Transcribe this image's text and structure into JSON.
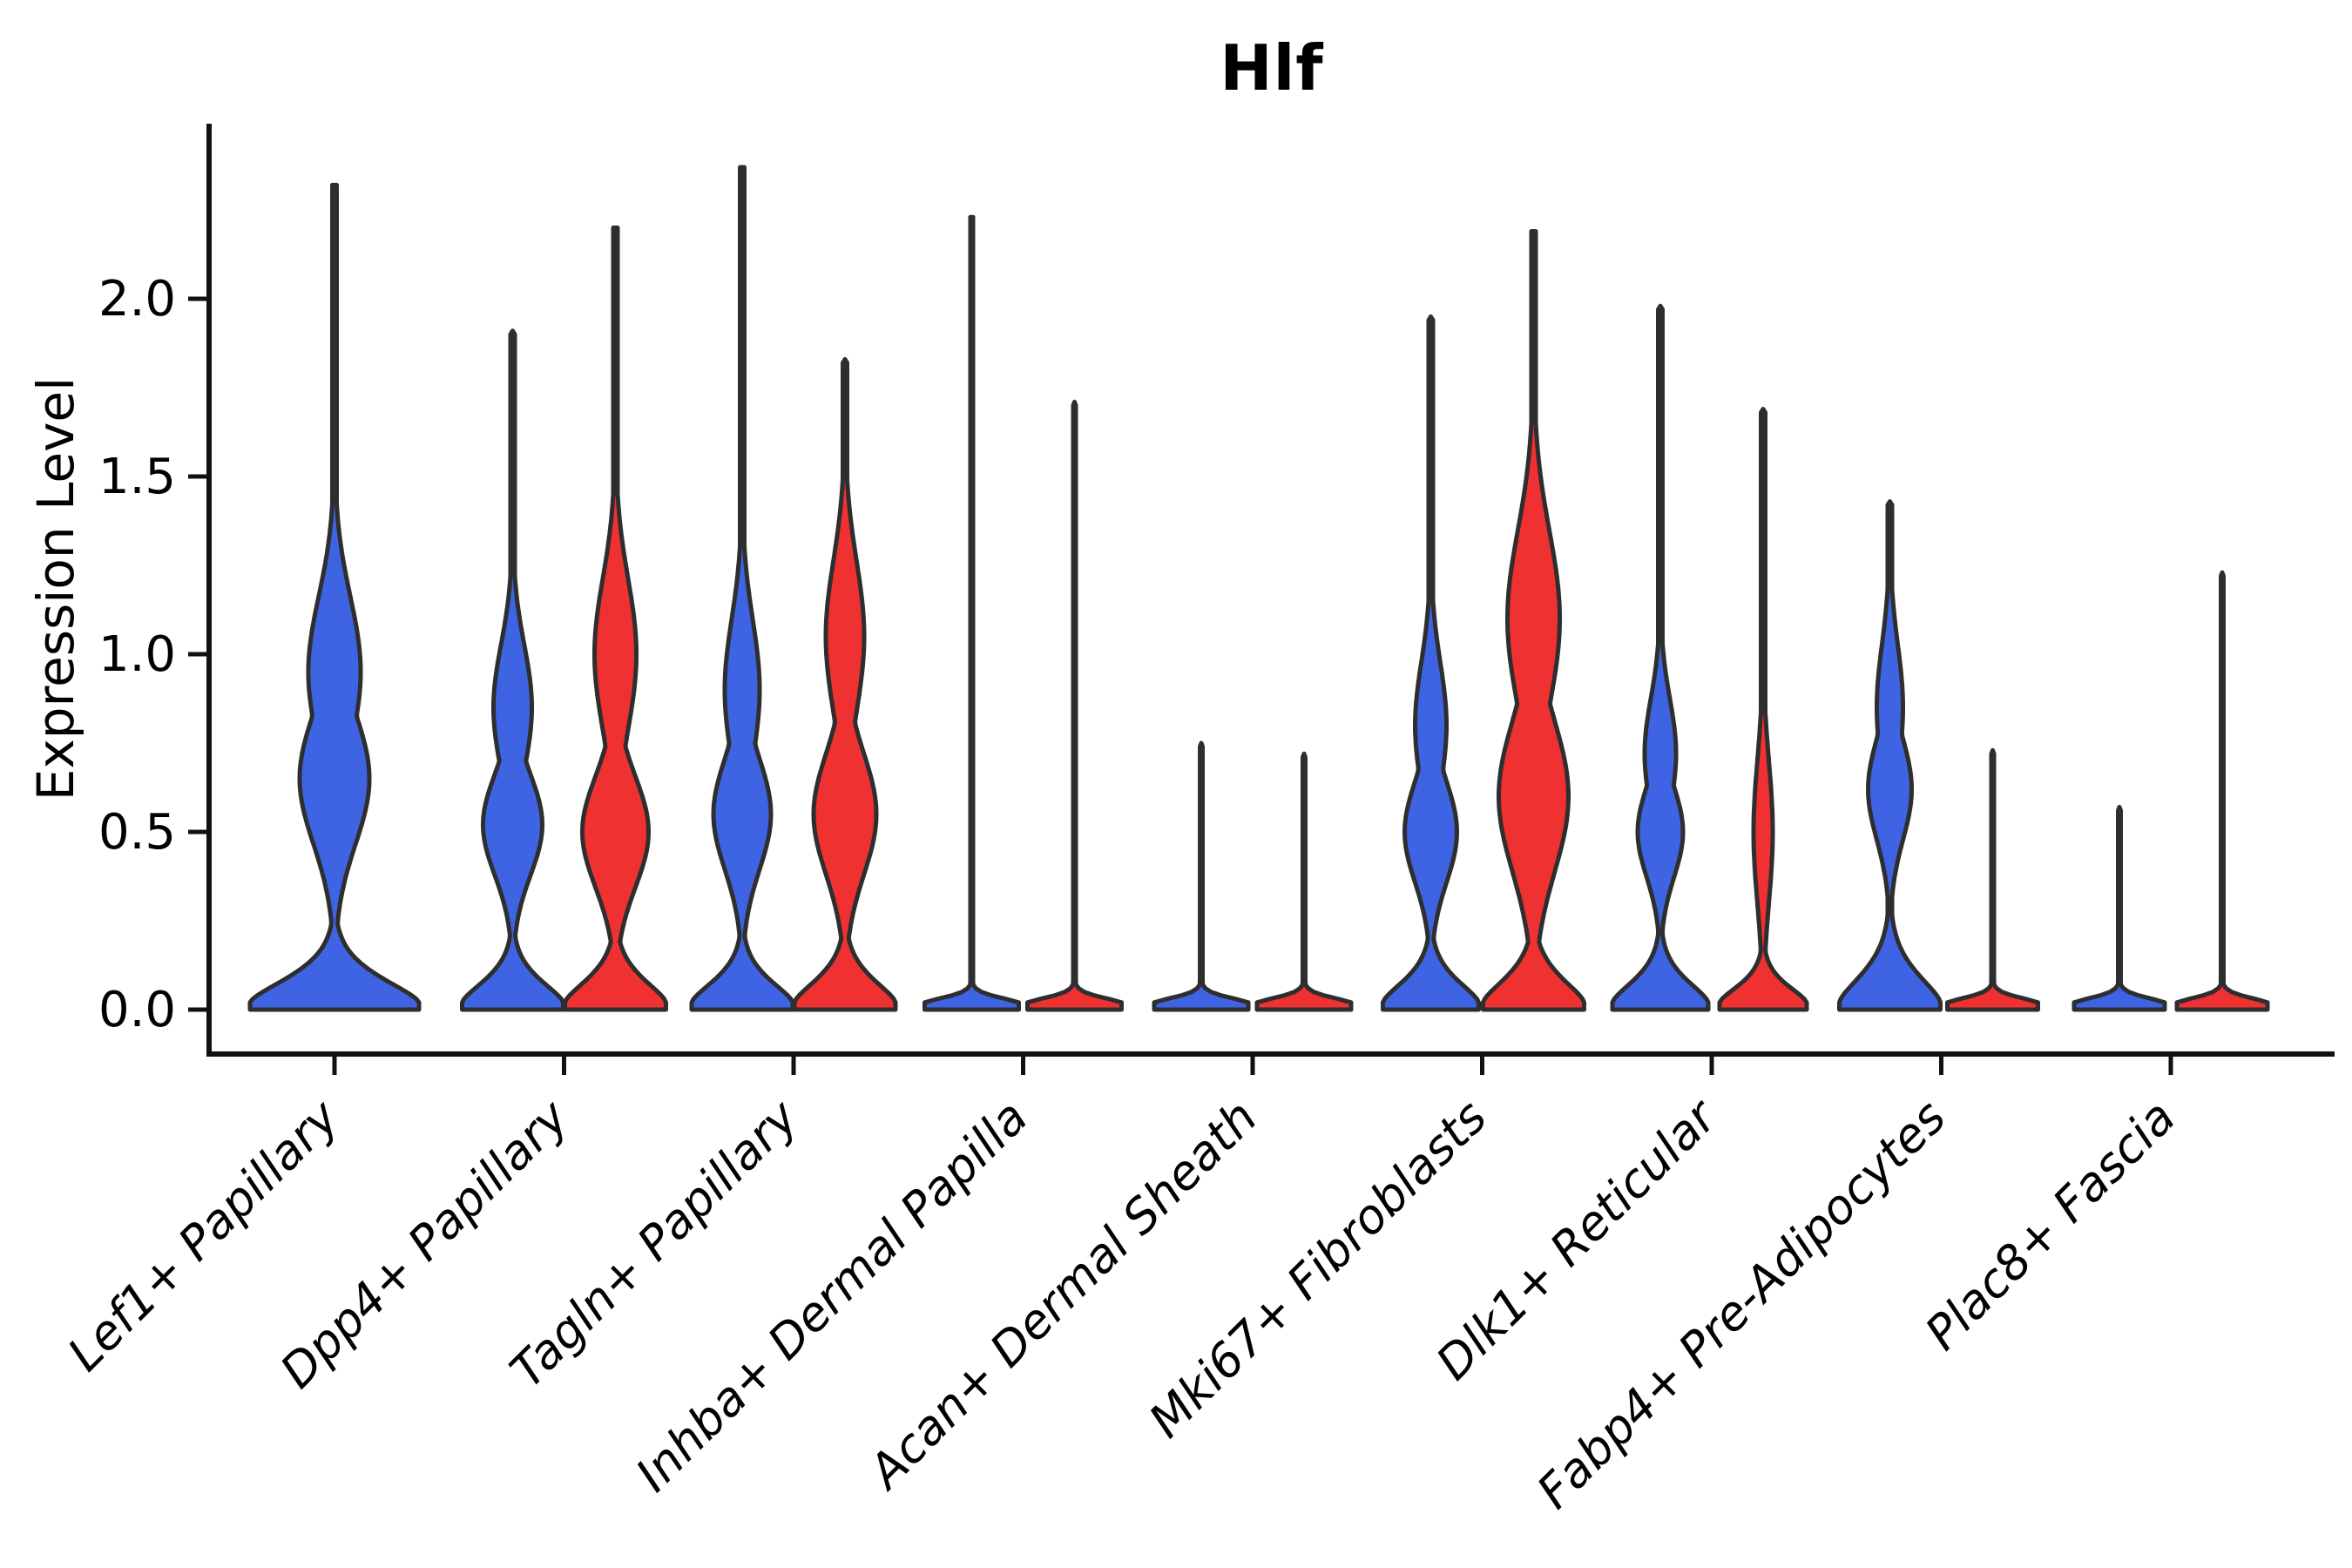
{
  "chart_data": {
    "type": "violin",
    "title": "Hlf",
    "ylabel": "Expression Level",
    "xlabel": "",
    "grid": false,
    "legend": null,
    "yticks": [
      0.0,
      0.5,
      1.0,
      1.5,
      2.0
    ],
    "ytick_labels": [
      "0.0",
      "0.5",
      "1.0",
      "1.5",
      "2.0"
    ],
    "ylim": [
      -0.07,
      2.49
    ],
    "colors": {
      "left": "#3E64E3",
      "right": "#F03131",
      "outline": "#2E2E2E",
      "axis": "#111111"
    },
    "categories": [
      {
        "label": "Lef1+ Papillary",
        "violins": [
          {
            "side": "full",
            "color": "left",
            "max": 2.32,
            "mode": 0.68,
            "base_w": 97,
            "base_s": 0.1,
            "bumps": [
              [
                0.65,
                40,
                0.26
              ],
              [
                0.95,
                30,
                0.3
              ]
            ],
            "spike_w": 2.5
          }
        ]
      },
      {
        "label": "Dpp4+ Papillary",
        "violins": [
          {
            "side": "left",
            "color": "left",
            "max": 1.91,
            "mode": 0.55,
            "base_w": 58,
            "base_s": 0.09,
            "bumps": [
              [
                0.52,
                34,
                0.2
              ],
              [
                0.85,
                22,
                0.25
              ]
            ],
            "spike_w": 2.5
          },
          {
            "side": "right",
            "color": "right",
            "max": 2.2,
            "mode": 0.55,
            "base_w": 58,
            "base_s": 0.095,
            "bumps": [
              [
                0.5,
                38,
                0.22
              ],
              [
                1.0,
                24,
                0.3
              ]
            ],
            "spike_w": 2.5
          }
        ]
      },
      {
        "label": "Tagln+ Papillary",
        "violins": [
          {
            "side": "left",
            "color": "left",
            "max": 2.37,
            "mode": 0.58,
            "base_w": 58,
            "base_s": 0.09,
            "bumps": [
              [
                0.55,
                33,
                0.22
              ],
              [
                0.9,
                20,
                0.28
              ]
            ],
            "spike_w": 2.5
          },
          {
            "side": "right",
            "color": "right",
            "max": 1.83,
            "mode": 0.6,
            "base_w": 58,
            "base_s": 0.095,
            "bumps": [
              [
                0.55,
                36,
                0.24
              ],
              [
                1.05,
                22,
                0.3
              ]
            ],
            "spike_w": 2.5
          }
        ]
      },
      {
        "label": "Inhba+ Dermal Papilla",
        "violins": [
          {
            "side": "left",
            "color": "left",
            "max": 2.23,
            "mode": 0.0,
            "base_w": 54,
            "base_s": 0.022,
            "bumps": [],
            "spike_w": 1.5
          },
          {
            "side": "right",
            "color": "right",
            "max": 1.71,
            "mode": 0.0,
            "base_w": 54,
            "base_s": 0.022,
            "bumps": [],
            "spike_w": 1.5
          }
        ]
      },
      {
        "label": "Acan+ Dermal Sheath",
        "violins": [
          {
            "side": "left",
            "color": "left",
            "max": 0.75,
            "mode": 0.0,
            "base_w": 54,
            "base_s": 0.022,
            "bumps": [],
            "spike_w": 1.5
          },
          {
            "side": "right",
            "color": "right",
            "max": 0.72,
            "mode": 0.0,
            "base_w": 54,
            "base_s": 0.022,
            "bumps": [],
            "spike_w": 1.5
          }
        ]
      },
      {
        "label": "Mki67+ Fibroblasts",
        "violins": [
          {
            "side": "left",
            "color": "left",
            "max": 1.95,
            "mode": 0.5,
            "base_w": 55,
            "base_s": 0.09,
            "bumps": [
              [
                0.5,
                30,
                0.2
              ],
              [
                0.8,
                18,
                0.25
              ]
            ],
            "spike_w": 2.5
          },
          {
            "side": "right",
            "color": "right",
            "max": 2.19,
            "mode": 0.7,
            "base_w": 58,
            "base_s": 0.1,
            "bumps": [
              [
                0.6,
                40,
                0.3
              ],
              [
                1.1,
                30,
                0.35
              ]
            ],
            "spike_w": 2.5
          }
        ]
      },
      {
        "label": "Dlk1+ Reticular",
        "violins": [
          {
            "side": "left",
            "color": "left",
            "max": 1.98,
            "mode": 0.5,
            "base_w": 55,
            "base_s": 0.09,
            "bumps": [
              [
                0.5,
                26,
                0.18
              ],
              [
                0.72,
                18,
                0.22
              ]
            ],
            "spike_w": 2.5
          },
          {
            "side": "right",
            "color": "right",
            "max": 1.69,
            "mode": 0.55,
            "base_w": 50,
            "base_s": 0.07,
            "bumps": [
              [
                0.5,
                11,
                0.28
              ]
            ],
            "spike_w": 2.5
          }
        ]
      },
      {
        "label": "Fabp4+ Pre-Adipocytes",
        "violins": [
          {
            "side": "left",
            "color": "left",
            "max": 1.43,
            "mode": 0.62,
            "base_w": 58,
            "base_s": 0.115,
            "bumps": [
              [
                0.62,
                25,
                0.2
              ],
              [
                0.85,
                15,
                0.25
              ]
            ],
            "spike_w": 2.5
          },
          {
            "side": "right",
            "color": "right",
            "max": 0.73,
            "mode": 0.0,
            "base_w": 52,
            "base_s": 0.022,
            "bumps": [],
            "spike_w": 1.5
          }
        ]
      },
      {
        "label": "Plac8+ Fascia",
        "violins": [
          {
            "side": "left",
            "color": "left",
            "max": 0.57,
            "mode": 0.0,
            "base_w": 52,
            "base_s": 0.022,
            "bumps": [],
            "spike_w": 1.5
          },
          {
            "side": "right",
            "color": "right",
            "max": 1.23,
            "mode": 0.0,
            "base_w": 52,
            "base_s": 0.022,
            "bumps": [],
            "spike_w": 1.5
          }
        ]
      }
    ]
  }
}
